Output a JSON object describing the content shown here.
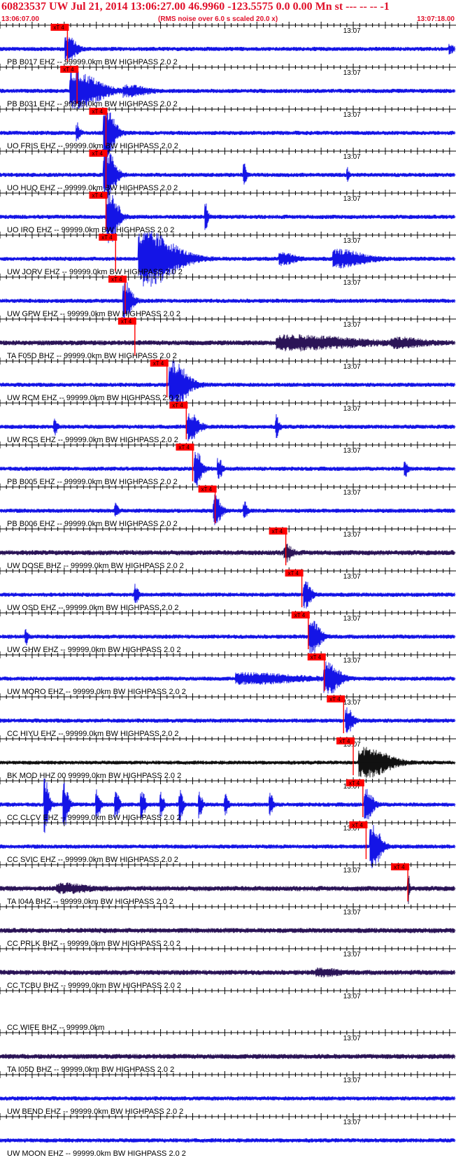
{
  "header": {
    "title": "60823537 UW Jul 21, 2014 13:06:27.00   46.9960 -123.5575  0.0 0.00 Mn st --- -- --  -1",
    "start_time": "13:06:07.00",
    "scaling_note": "(RMS noise over 6.0 s scaled 20.0 x)",
    "end_time": "13:07:18.00"
  },
  "colors": {
    "trace_blue": "#1414e6",
    "trace_dark": "#2b1457",
    "trace_black": "#111111",
    "pick": "#ff0000",
    "header_text": "#e0102a"
  },
  "chart_data": {
    "type": "line",
    "x_start": "13:06:07.00",
    "x_end": "13:07:18.00",
    "x_range_seconds": [
      0,
      71
    ],
    "minute_tick_label": "13:07",
    "pick_label": "xT 4",
    "traces": [
      {
        "label": "PB B017 EHZ -- 99999.0km BW  HIGHPASS  2.0  2",
        "color": "blue",
        "pick": 10.5,
        "burst": [
          [
            10.5,
            1.4,
            1.4
          ],
          [
            70,
            0.6,
            0.4
          ]
        ]
      },
      {
        "label": "PB B031 EHZ -- 99999.0km BW  HIGHPASS  2.0  2",
        "color": "blue",
        "pick": 12.0,
        "burst": [
          [
            12,
            4,
            2.0
          ],
          [
            20,
            3,
            0.5
          ]
        ]
      },
      {
        "label": "UO FRIS EHZ -- 99999.0km BW  HIGHPASS  2.0  2",
        "color": "blue",
        "pick": 16.5,
        "burst": [
          [
            16.5,
            1.5,
            3.0
          ],
          [
            12,
            0.5,
            1.0
          ]
        ]
      },
      {
        "label": "UO HUQ EHZ -- 99999.0km BW  HIGHPASS  2.0  2",
        "color": "blue",
        "pick": 16.5,
        "burst": [
          [
            16.5,
            1.5,
            3.0
          ],
          [
            38,
            0.4,
            1.2
          ],
          [
            54,
            0.3,
            0.8
          ]
        ]
      },
      {
        "label": "UO IRO EHZ -- 99999.0km BW  HIGHPASS  2.0  2",
        "color": "blue",
        "pick": 16.5,
        "burst": [
          [
            17,
            1.5,
            3.0
          ],
          [
            32,
            0.4,
            1.5
          ]
        ]
      },
      {
        "label": "UW JORV EHZ -- 99999.0km BW  HIGHPASS  2.0  2",
        "color": "blue",
        "pick": 18.0,
        "burst": [
          [
            23,
            5,
            3.0
          ],
          [
            53,
            4,
            0.9
          ],
          [
            44,
            2,
            0.6
          ]
        ]
      },
      {
        "label": "UW GPW EHZ -- 99999.0km BW  HIGHPASS  2.0  2",
        "color": "blue",
        "pick": 19.5,
        "burst": [
          [
            19.5,
            1.2,
            2.0
          ]
        ]
      },
      {
        "label": "TA F05D BHZ -- 99999.0km BW  HIGHPASS  2.0  2",
        "color": "dark",
        "pick": 21.0,
        "burst": [
          [
            46,
            10,
            0.7
          ],
          [
            62,
            4,
            0.4
          ]
        ]
      },
      {
        "label": "UW RCM EHZ -- 99999.0km BW  HIGHPASS  2.0  2",
        "color": "blue",
        "pick": 26.0,
        "burst": [
          [
            27,
            2.5,
            2.5
          ]
        ]
      },
      {
        "label": "UW RCS EHZ -- 99999.0km BW  HIGHPASS  2.0  2",
        "color": "blue",
        "pick": 29.0,
        "burst": [
          [
            29.5,
            1.5,
            1.5
          ],
          [
            43,
            0.5,
            1.2
          ],
          [
            8.5,
            0.5,
            0.8
          ]
        ]
      },
      {
        "label": "PB B005 EHZ -- 99999.0km BW  HIGHPASS  2.0  2",
        "color": "blue",
        "pick": 30.0,
        "burst": [
          [
            30.5,
            1.0,
            2.0
          ],
          [
            34,
            0.6,
            1.2
          ],
          [
            63,
            0.5,
            0.9
          ]
        ]
      },
      {
        "label": "PB B006 EHZ -- 99999.0km BW  HIGHPASS  2.0  2",
        "color": "blue",
        "pick": 33.5,
        "burst": [
          [
            33.5,
            1.0,
            1.6
          ],
          [
            38,
            0.5,
            1.0
          ],
          [
            18,
            0.5,
            0.8
          ]
        ]
      },
      {
        "label": "UW DOSE BHZ -- 99999.0km BW  HIGHPASS  2.0  2",
        "color": "dark",
        "pick": 44.5,
        "burst": [
          [
            44.5,
            1.0,
            0.9
          ]
        ]
      },
      {
        "label": "UW OSD EHZ -- 99999.0km BW  HIGHPASS  2.0  2",
        "color": "blue",
        "pick": 47.0,
        "burst": [
          [
            47.5,
            1.0,
            1.5
          ],
          [
            21,
            0.6,
            1.0
          ]
        ]
      },
      {
        "label": "UW GHW EHZ -- 99999.0km BW  HIGHPASS  2.0  2",
        "color": "blue",
        "pick": 48.0,
        "burst": [
          [
            48.5,
            1.5,
            1.8
          ],
          [
            4,
            0.4,
            1.0
          ]
        ]
      },
      {
        "label": "UW MORO EHZ -- 99999.0km BW  HIGHPASS  2.0  2",
        "color": "blue",
        "pick": 50.5,
        "burst": [
          [
            51,
            2.0,
            1.8
          ],
          [
            39,
            8,
            0.5
          ]
        ]
      },
      {
        "label": "CC HIYU EHZ -- 99999.0km BW  HIGHPASS  2.0  2",
        "color": "blue",
        "pick": 53.5,
        "burst": [
          [
            54,
            1.0,
            1.4
          ]
        ]
      },
      {
        "label": "BK MOD HHZ 00 99999.0km BW  HIGHPASS  2.0  2",
        "color": "black",
        "pick": 55.0,
        "burst": [
          [
            57,
            4,
            1.6
          ]
        ]
      },
      {
        "label": "CC CLCV EHZ -- 99999.0km BW  HIGHPASS  2.0  2",
        "color": "blue",
        "pick": 56.5,
        "burst": [
          [
            7,
            0.7,
            3.0
          ],
          [
            10,
            0.7,
            2.5
          ],
          [
            15,
            0.6,
            2.0
          ],
          [
            18,
            0.6,
            1.5
          ],
          [
            22,
            0.6,
            1.6
          ],
          [
            25,
            0.5,
            1.4
          ],
          [
            28,
            0.5,
            1.8
          ],
          [
            31,
            0.5,
            1.4
          ],
          [
            35,
            0.5,
            1.2
          ],
          [
            42,
            0.5,
            1.5
          ],
          [
            57,
            1.2,
            1.6
          ]
        ]
      },
      {
        "label": "CC SVIC EHZ -- 99999.0km BW  HIGHPASS  2.0  2",
        "color": "blue",
        "pick": 57.0,
        "burst": [
          [
            58,
            1.5,
            2.3
          ]
        ]
      },
      {
        "label": "TA I04A BHZ -- 99999.0km BW  HIGHPASS  2.0  2",
        "color": "dark",
        "pick": 63.5,
        "burst": [
          [
            10,
            4,
            0.4
          ],
          [
            63.5,
            0.3,
            2.0
          ]
        ]
      },
      {
        "label": "CC PRLK BHZ -- 99999.0km BW  HIGHPASS  2.0  2",
        "color": "dark",
        "pick": null,
        "burst": []
      },
      {
        "label": "CC TCBU BHZ -- 99999.0km BW  HIGHPASS  2.0  2",
        "color": "dark",
        "pick": null,
        "burst": [
          [
            50,
            3,
            0.3
          ]
        ]
      },
      {
        "label": "CC WIFE BHZ -- 99999.0km",
        "color": "none",
        "pick": null,
        "burst": []
      },
      {
        "label": "TA I05D BHZ -- 99999.0km BW  HIGHPASS  2.0  2",
        "color": "dark",
        "pick": null,
        "burst": []
      },
      {
        "label": "UW BEND EHZ -- 99999.0km BW  HIGHPASS  2.0  2",
        "color": "blue",
        "pick": null,
        "burst": []
      },
      {
        "label": "UW MOON EHZ -- 99999.0km BW  HIGHPASS  2.0  2",
        "color": "blue",
        "pick": null,
        "burst": []
      }
    ]
  }
}
